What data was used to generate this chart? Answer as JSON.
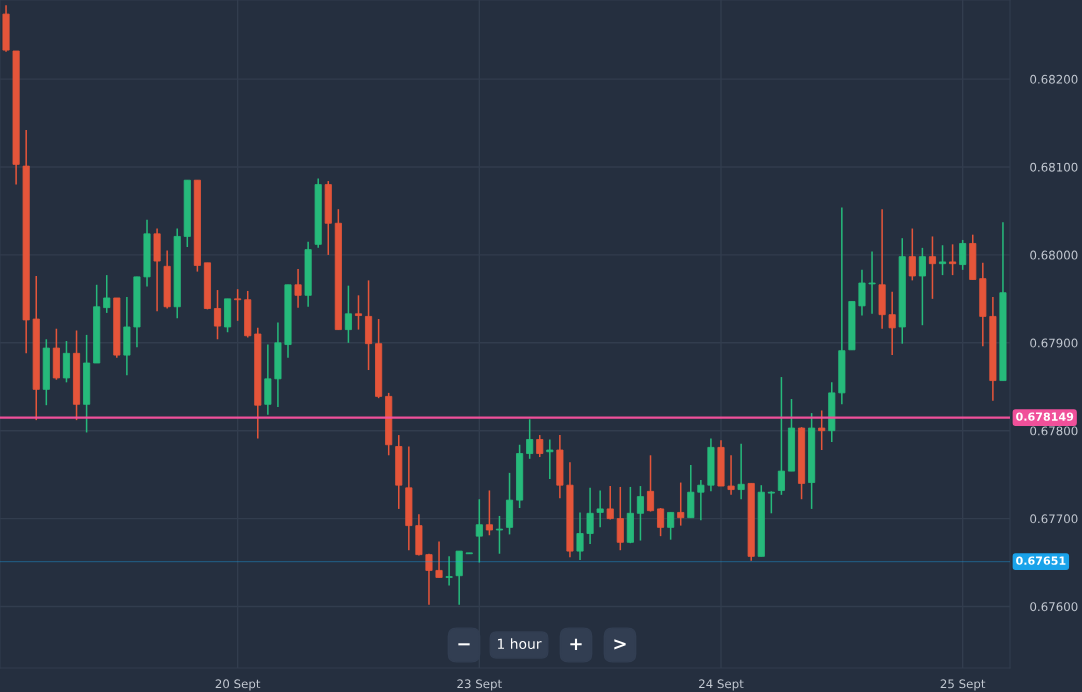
{
  "chart_data": {
    "type": "candlestick",
    "categories": [
      null,
      null,
      null,
      null,
      null,
      null,
      null,
      null,
      null,
      null,
      null,
      null,
      null,
      null,
      null,
      null,
      null,
      null,
      null,
      null,
      null,
      null,
      null,
      "20 Sept",
      null,
      null,
      null,
      null,
      null,
      null,
      null,
      null,
      null,
      null,
      null,
      null,
      null,
      null,
      null,
      null,
      null,
      null,
      null,
      null,
      null,
      null,
      null,
      "23 Sept",
      null,
      null,
      null,
      null,
      null,
      null,
      null,
      null,
      null,
      null,
      null,
      null,
      null,
      null,
      null,
      null,
      null,
      null,
      null,
      null,
      null,
      null,
      null,
      "24 Sept",
      null,
      null,
      null,
      null,
      null,
      null,
      null,
      null,
      null,
      null,
      null,
      null,
      null,
      null,
      null,
      null,
      null,
      null,
      null,
      null,
      null,
      null,
      null,
      "25 Sept",
      null,
      null,
      null,
      null
    ],
    "ohlc": [
      [
        0.68274,
        0.68284,
        0.68231,
        0.68233
      ],
      [
        0.68232,
        0.68232,
        0.6808,
        0.68103
      ],
      [
        0.68101,
        0.68142,
        0.67888,
        0.67926
      ],
      [
        0.67927,
        0.67976,
        0.67812,
        0.67847
      ],
      [
        0.67847,
        0.67904,
        0.67829,
        0.67894
      ],
      [
        0.67894,
        0.67916,
        0.67858,
        0.6786
      ],
      [
        0.6786,
        0.67902,
        0.67855,
        0.67888
      ],
      [
        0.67888,
        0.67914,
        0.67812,
        0.6783
      ],
      [
        0.6783,
        0.67909,
        0.67798,
        0.67877
      ],
      [
        0.67877,
        0.67966,
        0.67877,
        0.67941
      ],
      [
        0.6794,
        0.67977,
        0.67934,
        0.67951
      ],
      [
        0.67951,
        0.67951,
        0.67883,
        0.67886
      ],
      [
        0.67886,
        0.67952,
        0.67863,
        0.67918
      ],
      [
        0.67918,
        0.67975,
        0.67895,
        0.67975
      ],
      [
        0.67975,
        0.6804,
        0.67964,
        0.68024
      ],
      [
        0.68024,
        0.6803,
        0.67936,
        0.67993
      ],
      [
        0.67987,
        0.68005,
        0.67939,
        0.67941
      ],
      [
        0.67941,
        0.6803,
        0.67928,
        0.68021
      ],
      [
        0.68021,
        0.68085,
        0.68009,
        0.68085
      ],
      [
        0.68085,
        0.68085,
        0.67981,
        0.67988
      ],
      [
        0.67991,
        0.67991,
        0.67938,
        0.67939
      ],
      [
        0.67939,
        0.6796,
        0.67904,
        0.67919
      ],
      [
        0.67918,
        0.6795,
        0.67912,
        0.6795
      ],
      [
        0.6795,
        0.67961,
        0.67925,
        0.67949
      ],
      [
        0.67949,
        0.67959,
        0.67906,
        0.67908
      ],
      [
        0.6791,
        0.67917,
        0.67791,
        0.67829
      ],
      [
        0.6783,
        0.67898,
        0.67818,
        0.67859
      ],
      [
        0.67859,
        0.67923,
        0.67827,
        0.679
      ],
      [
        0.67898,
        0.67966,
        0.67883,
        0.67966
      ],
      [
        0.67966,
        0.67984,
        0.6794,
        0.67954
      ],
      [
        0.67954,
        0.68015,
        0.67941,
        0.68006
      ],
      [
        0.68012,
        0.68087,
        0.68008,
        0.6808
      ],
      [
        0.6808,
        0.68084,
        0.68,
        0.68036
      ],
      [
        0.68036,
        0.68052,
        0.67915,
        0.67915
      ],
      [
        0.67915,
        0.67965,
        0.679,
        0.67933
      ],
      [
        0.67933,
        0.67954,
        0.67915,
        0.67931
      ],
      [
        0.6793,
        0.67971,
        0.67869,
        0.67899
      ],
      [
        0.67899,
        0.67927,
        0.67837,
        0.67839
      ],
      [
        0.67839,
        0.67843,
        0.67772,
        0.67784
      ],
      [
        0.67782,
        0.67795,
        0.67711,
        0.67738
      ],
      [
        0.67735,
        0.67782,
        0.67664,
        0.67692
      ],
      [
        0.67692,
        0.67705,
        0.67658,
        0.67659
      ],
      [
        0.67659,
        0.6766,
        0.67602,
        0.67641
      ],
      [
        0.67641,
        0.67674,
        0.67633,
        0.67633
      ],
      [
        0.67633,
        0.67657,
        0.67624,
        0.67634
      ],
      [
        0.67635,
        0.67663,
        0.67602,
        0.67663
      ],
      [
        0.6766,
        0.67661,
        0.6766,
        0.67661
      ],
      [
        0.6768,
        0.67722,
        0.6765,
        0.67693
      ],
      [
        0.67693,
        0.67732,
        0.67681,
        0.67687
      ],
      [
        0.67687,
        0.67703,
        0.6766,
        0.67688
      ],
      [
        0.6769,
        0.67752,
        0.67682,
        0.67721
      ],
      [
        0.67721,
        0.67784,
        0.67712,
        0.67774
      ],
      [
        0.67774,
        0.67813,
        0.67768,
        0.6779
      ],
      [
        0.6779,
        0.67795,
        0.6777,
        0.67774
      ],
      [
        0.67776,
        0.6779,
        0.67745,
        0.67778
      ],
      [
        0.67778,
        0.67795,
        0.67723,
        0.67738
      ],
      [
        0.67738,
        0.67764,
        0.67656,
        0.67663
      ],
      [
        0.67663,
        0.67707,
        0.67653,
        0.67683
      ],
      [
        0.67683,
        0.67735,
        0.67671,
        0.67706
      ],
      [
        0.67707,
        0.67732,
        0.6769,
        0.67711
      ],
      [
        0.67711,
        0.67737,
        0.67699,
        0.677
      ],
      [
        0.677,
        0.67736,
        0.67664,
        0.67673
      ],
      [
        0.67673,
        0.67736,
        0.67672,
        0.67706
      ],
      [
        0.67706,
        0.67737,
        0.67675,
        0.67725
      ],
      [
        0.67731,
        0.67772,
        0.67708,
        0.67709
      ],
      [
        0.67711,
        0.67712,
        0.6768,
        0.6769
      ],
      [
        0.6769,
        0.67707,
        0.67676,
        0.67707
      ],
      [
        0.67707,
        0.67741,
        0.67692,
        0.67701
      ],
      [
        0.67701,
        0.67761,
        0.67701,
        0.6773
      ],
      [
        0.6773,
        0.67744,
        0.67698,
        0.67738
      ],
      [
        0.67738,
        0.67791,
        0.67731,
        0.67781
      ],
      [
        0.67781,
        0.67789,
        0.67737,
        0.67737
      ],
      [
        0.67737,
        0.67772,
        0.67727,
        0.67733
      ],
      [
        0.67733,
        0.67785,
        0.67722,
        0.67739
      ],
      [
        0.6774,
        0.6774,
        0.67652,
        0.67657
      ],
      [
        0.67657,
        0.67738,
        0.67657,
        0.6773
      ],
      [
        0.67729,
        0.67731,
        0.67706,
        0.6773
      ],
      [
        0.67732,
        0.67861,
        0.67727,
        0.67754
      ],
      [
        0.67754,
        0.67836,
        0.67754,
        0.67803
      ],
      [
        0.67803,
        0.67804,
        0.67722,
        0.6774
      ],
      [
        0.67741,
        0.6782,
        0.67711,
        0.67803
      ],
      [
        0.67803,
        0.67823,
        0.67778,
        0.678
      ],
      [
        0.678,
        0.67855,
        0.67787,
        0.67843
      ],
      [
        0.67843,
        0.68054,
        0.6783,
        0.67891
      ],
      [
        0.67892,
        0.67947,
        0.67892,
        0.67947
      ],
      [
        0.67942,
        0.67983,
        0.67931,
        0.67968
      ],
      [
        0.67967,
        0.68004,
        0.67933,
        0.67968
      ],
      [
        0.67966,
        0.68052,
        0.67916,
        0.67932
      ],
      [
        0.67932,
        0.67958,
        0.67886,
        0.67917
      ],
      [
        0.67918,
        0.68019,
        0.67899,
        0.67998
      ],
      [
        0.67998,
        0.6803,
        0.67971,
        0.67976
      ],
      [
        0.67976,
        0.68008,
        0.6792,
        0.67998
      ],
      [
        0.67998,
        0.68021,
        0.6795,
        0.6799
      ],
      [
        0.6799,
        0.68011,
        0.67977,
        0.67992
      ],
      [
        0.67992,
        0.68012,
        0.67977,
        0.6799
      ],
      [
        0.67989,
        0.68017,
        0.67983,
        0.68013
      ],
      [
        0.68013,
        0.68023,
        0.67972,
        0.67972
      ],
      [
        0.67973,
        0.67991,
        0.67896,
        0.6793
      ],
      [
        0.6793,
        0.67952,
        0.67834,
        0.67857
      ],
      [
        0.67857,
        0.68037,
        0.67857,
        0.67957
      ]
    ],
    "colors": [
      "#e5553a",
      "#e5553a",
      "#e5553a",
      "#e5553a",
      "#26ba7b",
      "#e5553a",
      "#26ba7b",
      "#e5553a",
      "#26ba7b",
      "#26ba7b",
      "#26ba7b",
      "#e5553a",
      "#26ba7b",
      "#26ba7b",
      "#26ba7b",
      "#e5553a",
      "#e5553a",
      "#26ba7b",
      "#26ba7b",
      "#e5553a",
      "#e5553a",
      "#e5553a",
      "#26ba7b",
      "#e5553a",
      "#e5553a",
      "#e5553a",
      "#26ba7b",
      "#26ba7b",
      "#26ba7b",
      "#e5553a",
      "#26ba7b",
      "#26ba7b",
      "#e5553a",
      "#e5553a",
      "#26ba7b",
      "#e5553a",
      "#e5553a",
      "#e5553a",
      "#e5553a",
      "#e5553a",
      "#e5553a",
      "#e5553a",
      "#e5553a",
      "#e5553a",
      "#26ba7b",
      "#26ba7b",
      "#26ba7b",
      "#26ba7b",
      "#e5553a",
      "#26ba7b",
      "#26ba7b",
      "#26ba7b",
      "#26ba7b",
      "#e5553a",
      "#26ba7b",
      "#e5553a",
      "#e5553a",
      "#26ba7b",
      "#26ba7b",
      "#26ba7b",
      "#e5553a",
      "#e5553a",
      "#26ba7b",
      "#26ba7b",
      "#e5553a",
      "#e5553a",
      "#26ba7b",
      "#e5553a",
      "#26ba7b",
      "#26ba7b",
      "#26ba7b",
      "#e5553a",
      "#e5553a",
      "#26ba7b",
      "#e5553a",
      "#26ba7b",
      "#26ba7b",
      "#26ba7b",
      "#26ba7b",
      "#e5553a",
      "#26ba7b",
      "#e5553a",
      "#26ba7b",
      "#26ba7b",
      "#26ba7b",
      "#26ba7b",
      "#26ba7b",
      "#e5553a",
      "#e5553a",
      "#26ba7b",
      "#e5553a",
      "#26ba7b",
      "#e5553a",
      "#26ba7b",
      "#e5553a",
      "#26ba7b",
      "#e5553a",
      "#e5553a",
      "#e5553a",
      "#26ba7b"
    ],
    "ylim": [
      0.6753,
      0.6829
    ],
    "yticks": [
      {
        "value": 0.676,
        "label": "0.67600"
      },
      {
        "value": 0.677,
        "label": "0.67700"
      },
      {
        "value": 0.678,
        "label": "0.67800"
      },
      {
        "value": 0.679,
        "label": "0.67900"
      },
      {
        "value": 0.68,
        "label": "0.68000"
      },
      {
        "value": 0.681,
        "label": "0.68100"
      },
      {
        "value": 0.682,
        "label": "0.68200"
      }
    ],
    "grid": true,
    "ref_lines": [
      {
        "axis": "y",
        "value": 0.678149,
        "label": "0.678149",
        "color": "#f0509a"
      },
      {
        "axis": "y",
        "value": 0.67651,
        "label": "0.67651",
        "color": "#1aa3ea"
      }
    ],
    "annotations": [
      "−",
      "1 hour",
      "+",
      ">"
    ]
  }
}
